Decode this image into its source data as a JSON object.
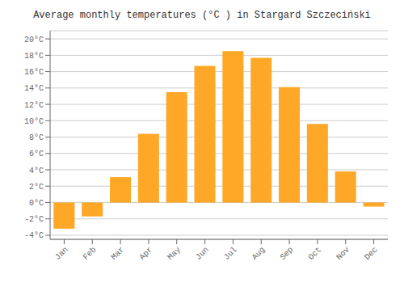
{
  "chart_data": {
    "type": "bar",
    "title": "Average monthly temperatures (°C ) in Stargard Szczeciński",
    "categories": [
      "Jan",
      "Feb",
      "Mar",
      "Apr",
      "May",
      "Jun",
      "Jul",
      "Aug",
      "Sep",
      "Oct",
      "Nov",
      "Dec"
    ],
    "values": [
      -3.2,
      -1.7,
      3.1,
      8.4,
      13.5,
      16.7,
      18.5,
      17.7,
      14.1,
      9.6,
      3.8,
      -0.5
    ],
    "color": "#FFA726",
    "ylim": [
      -4.5,
      21.0
    ],
    "yticks": [
      {
        "value": -4,
        "label": "-4°C"
      },
      {
        "value": -2,
        "label": "-2°C"
      },
      {
        "value": 0,
        "label": "0°C"
      },
      {
        "value": 2,
        "label": "2°C"
      },
      {
        "value": 4,
        "label": "4°C"
      },
      {
        "value": 6,
        "label": "6°C"
      },
      {
        "value": 8,
        "label": "8°C"
      },
      {
        "value": 10,
        "label": "10°C"
      },
      {
        "value": 12,
        "label": "12°C"
      },
      {
        "value": 14,
        "label": "14°C"
      },
      {
        "value": 16,
        "label": "16°C"
      },
      {
        "value": 18,
        "label": "18°C"
      },
      {
        "value": 20,
        "label": "20°C"
      }
    ],
    "grid": true
  }
}
